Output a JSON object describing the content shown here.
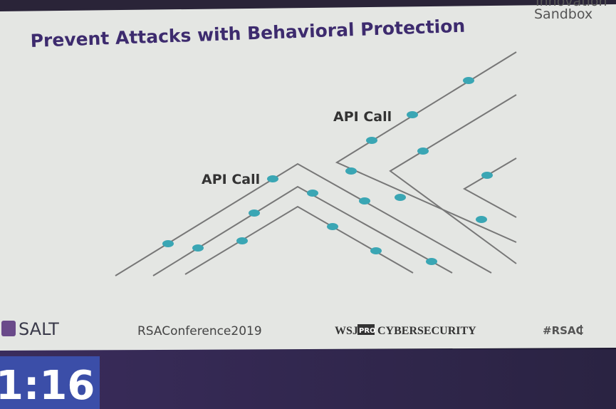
{
  "slide": {
    "title": "Prevent Attacks with Behavioral Protection",
    "corner": [
      "Innovation",
      "Sandbox"
    ],
    "labels": [
      "API Call",
      "API Call"
    ],
    "footer": {
      "logo": "SALT",
      "conference": "RSAConference2019",
      "wsj": "WSJ",
      "pro": "PRO",
      "cyber": "CYBERSECURITY",
      "tag": "#RSAC"
    }
  },
  "timer": "1:16"
}
